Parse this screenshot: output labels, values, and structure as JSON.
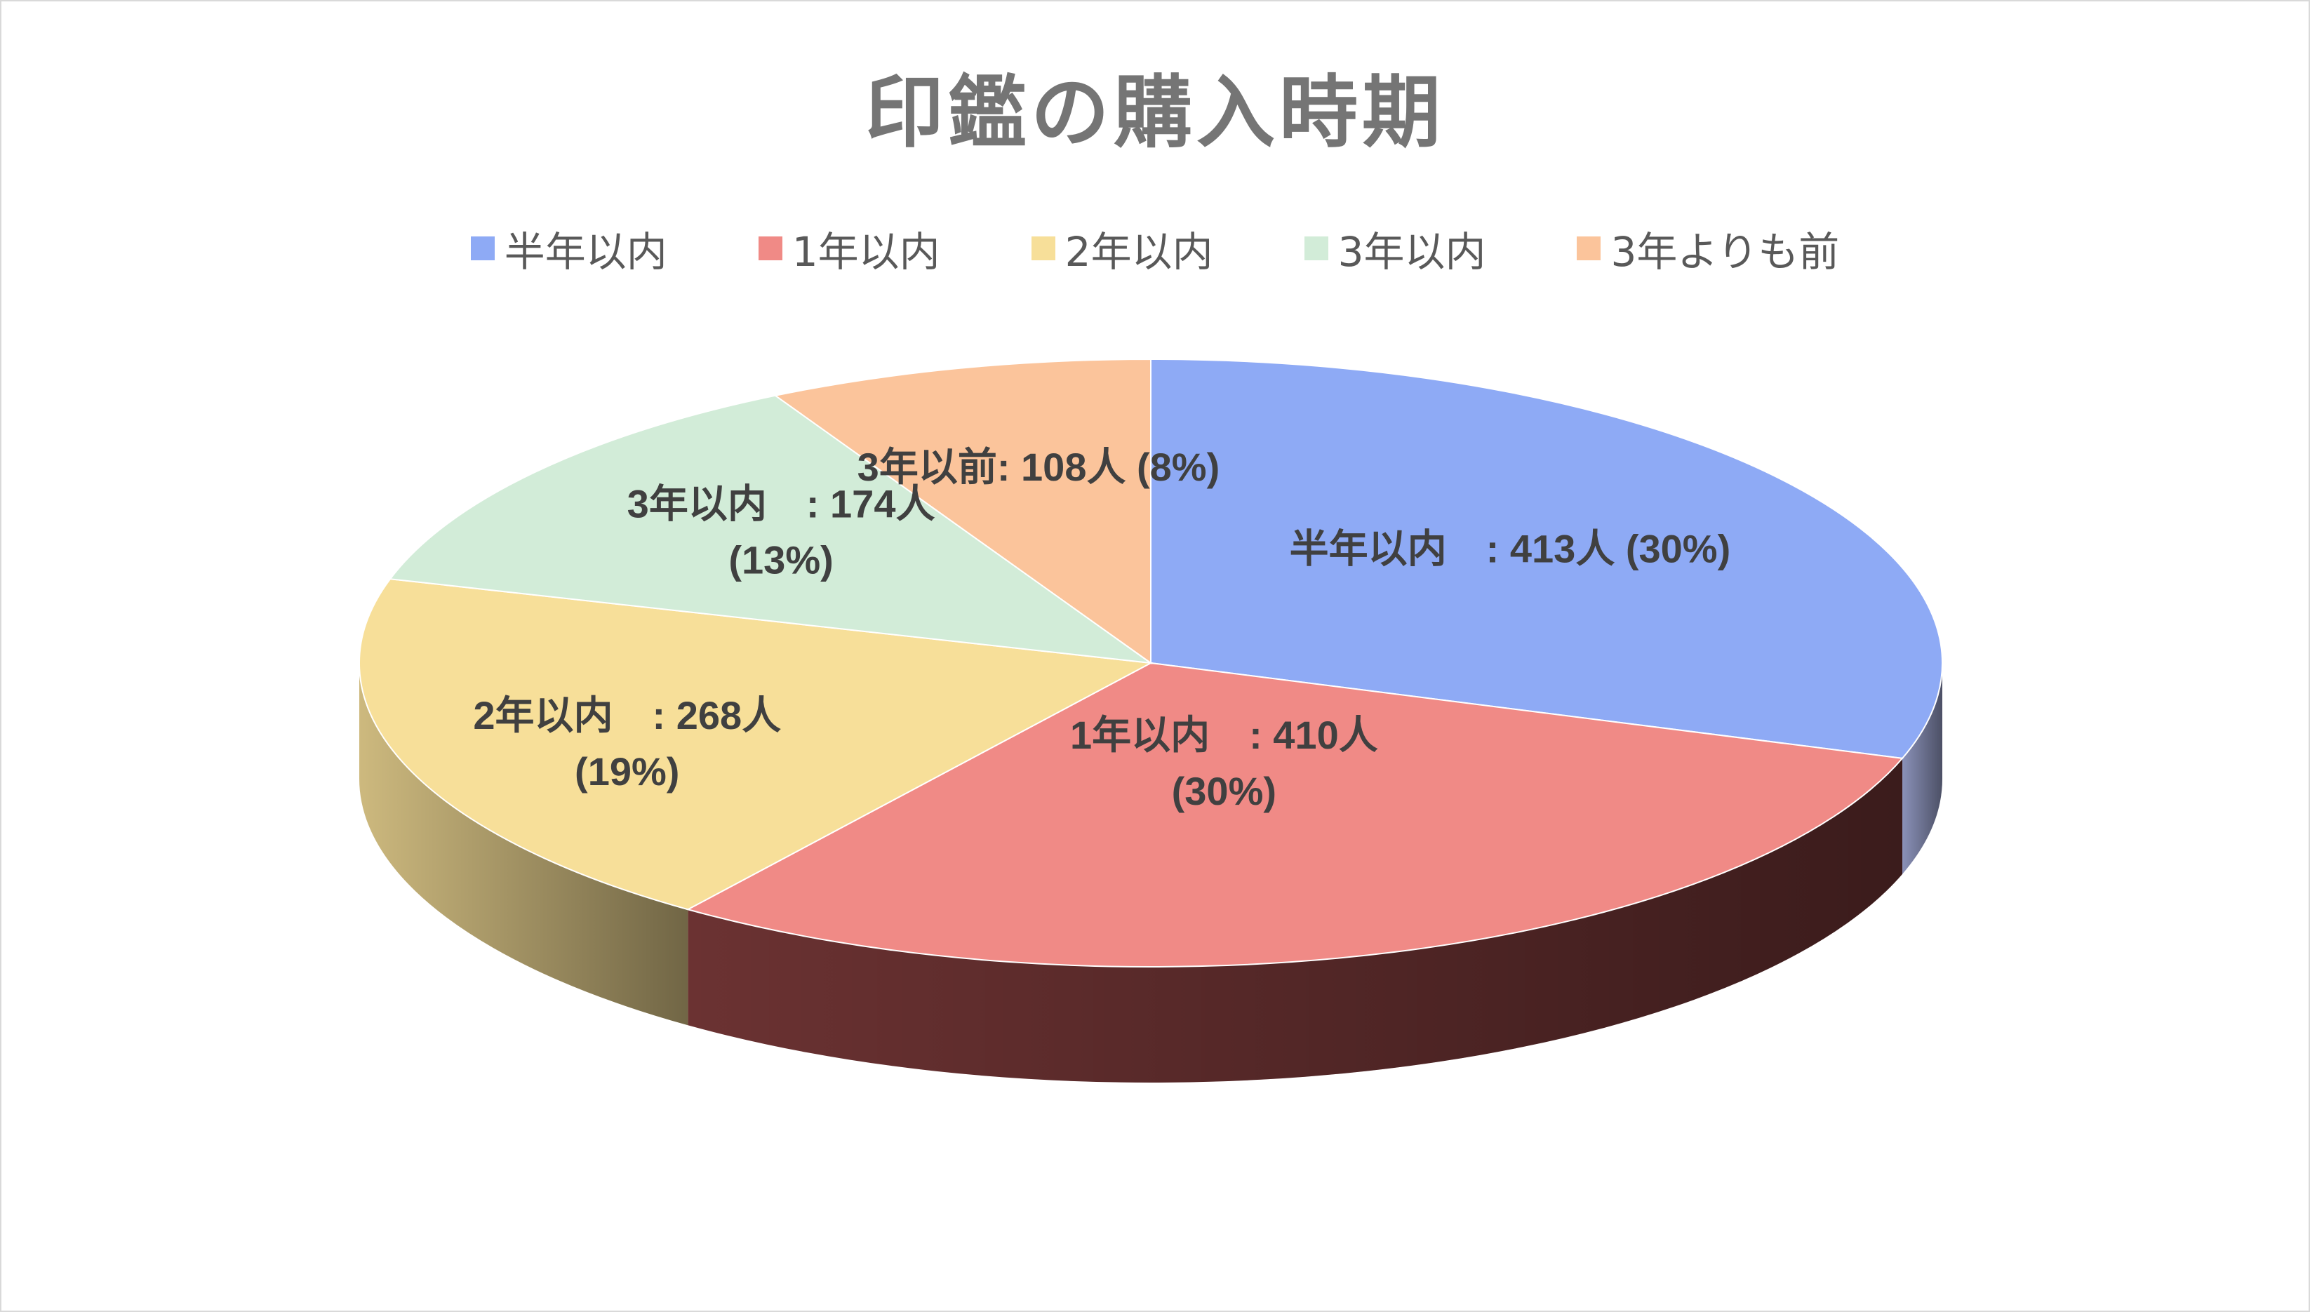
{
  "chart_data": {
    "type": "pie",
    "title": "印鑑の購入時期",
    "legend_position": "top",
    "legend": [
      "半年以内",
      "1年以内",
      "2年以内",
      "3年以内",
      "3年よりも前"
    ],
    "slices": [
      {
        "legend": "半年以内",
        "value": 413,
        "percent": 30,
        "color": "#8eaaf5",
        "label_lines": [
          "半年以内　: 413人 (30%)"
        ]
      },
      {
        "legend": "1年以内",
        "value": 410,
        "percent": 30,
        "color": "#f08a86",
        "label_lines": [
          "1年以内　: 410人",
          "(30%)"
        ]
      },
      {
        "legend": "2年以内",
        "value": 268,
        "percent": 19,
        "color": "#f7df99",
        "label_lines": [
          "2年以内　: 268人",
          "(19%)"
        ]
      },
      {
        "legend": "3年以内",
        "value": 174,
        "percent": 13,
        "color": "#d2ecd8",
        "label_lines": [
          "3年以内　: 174人",
          "(13%)"
        ]
      },
      {
        "legend": "3年よりも前",
        "value": 108,
        "percent": 8,
        "color": "#fbc49b",
        "label_lines": [
          "3年以前: 108人 (8%)"
        ]
      }
    ],
    "side_colors": [
      "#8a91b8",
      "#6b3232",
      "#cdb97e",
      "#bfcfc2",
      "#d9a982"
    ]
  }
}
